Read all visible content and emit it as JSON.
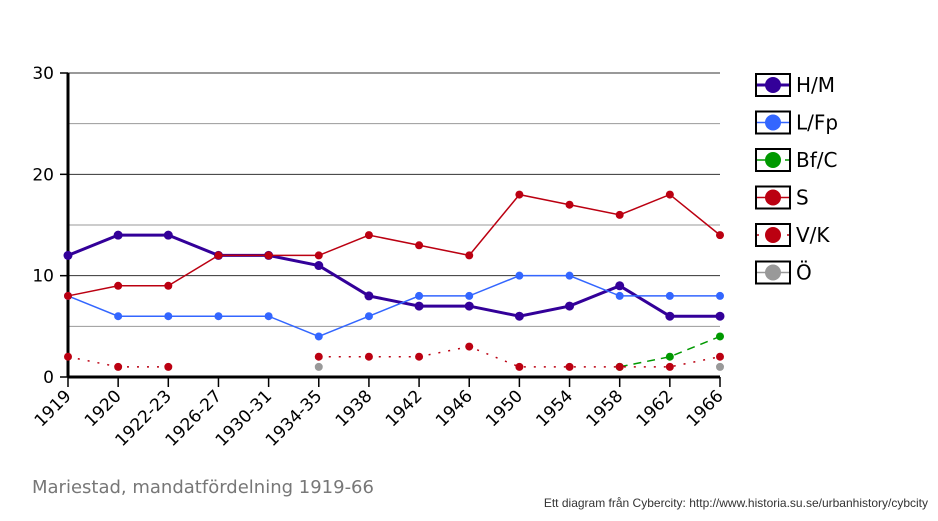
{
  "chart_data": {
    "type": "line",
    "title": "Mariestad, mandatfördelning 1919-66",
    "credit": "Ett diagram från Cybercity: http://www.historia.su.se/urbanhistory/cybcity",
    "categories": [
      "1919",
      "1920",
      "1922-23",
      "1926-27",
      "1930-31",
      "1934-35",
      "1938",
      "1942",
      "1946",
      "1950",
      "1954",
      "1958",
      "1962",
      "1966"
    ],
    "ylim": [
      0,
      30
    ],
    "yticks": [
      0,
      10,
      20,
      30
    ],
    "grid": true,
    "legend_position": "right",
    "series": [
      {
        "name": "H/M",
        "color": "#330099",
        "style": "solid",
        "width": 3,
        "values": [
          12,
          14,
          14,
          12,
          12,
          11,
          8,
          7,
          7,
          6,
          7,
          9,
          6,
          6
        ]
      },
      {
        "name": "L/Fp",
        "color": "#3366ff",
        "style": "solid",
        "width": 1.5,
        "values": [
          8,
          6,
          6,
          6,
          6,
          4,
          6,
          8,
          8,
          10,
          10,
          8,
          8,
          8
        ]
      },
      {
        "name": "Bf/C",
        "color": "#009900",
        "style": "dashed",
        "width": 1.5,
        "values": [
          null,
          null,
          null,
          null,
          null,
          null,
          null,
          null,
          null,
          null,
          null,
          1,
          2,
          4
        ]
      },
      {
        "name": "S",
        "color": "#bb0011",
        "style": "solid",
        "width": 1.5,
        "values": [
          8,
          9,
          9,
          12,
          12,
          12,
          14,
          13,
          12,
          18,
          17,
          16,
          18,
          14
        ]
      },
      {
        "name": "V/K",
        "color": "#bb0011",
        "style": "dotted",
        "width": 1.5,
        "values": [
          2,
          1,
          1,
          null,
          null,
          2,
          2,
          2,
          3,
          1,
          1,
          1,
          1,
          2
        ]
      },
      {
        "name": "Ö",
        "color": "#999999",
        "style": "solid",
        "width": 1.5,
        "values": [
          null,
          null,
          null,
          null,
          null,
          1,
          null,
          null,
          null,
          null,
          null,
          null,
          null,
          1
        ]
      }
    ]
  }
}
